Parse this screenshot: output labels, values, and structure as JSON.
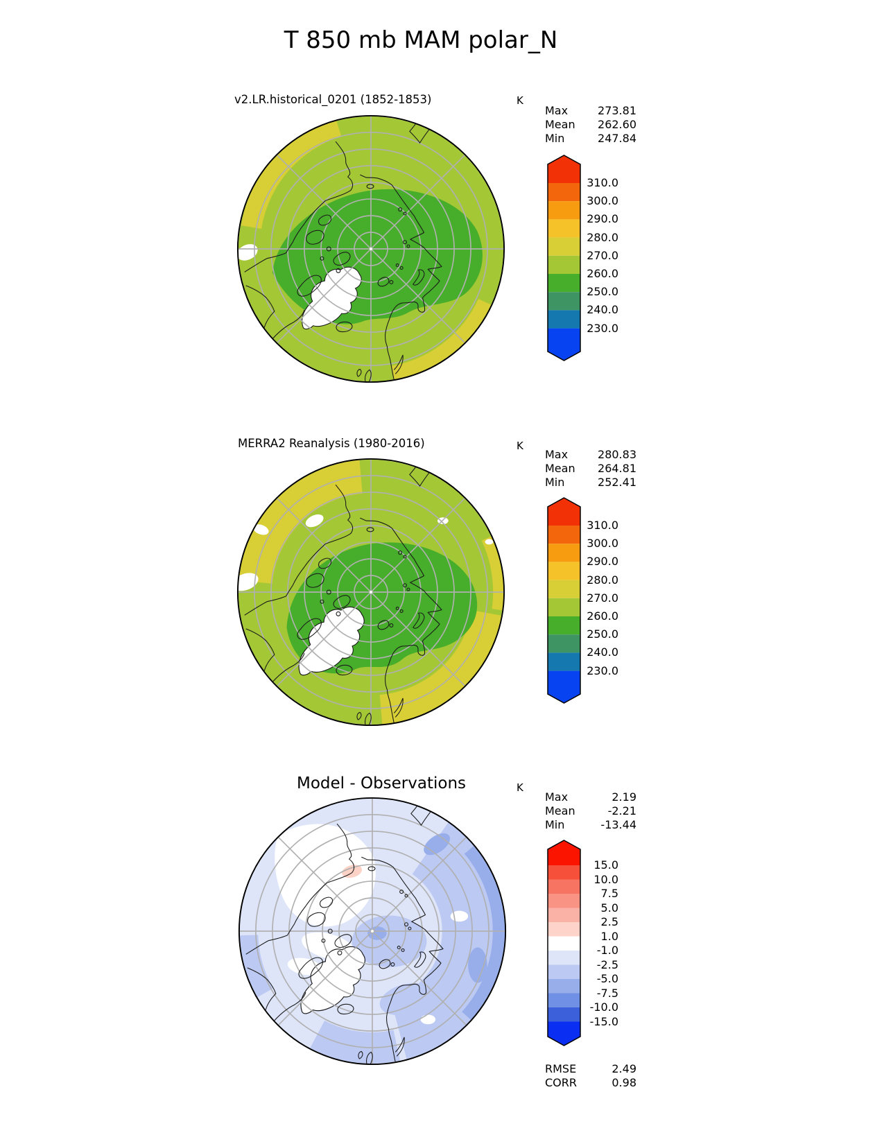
{
  "title": "T 850 mb MAM polar_N",
  "colors": {
    "background": "#ffffff",
    "graticule": "#b0b0b0",
    "coastline": "#1a1a1a",
    "map_outline": "#000000",
    "text": "#000000"
  },
  "panels": [
    {
      "name": "model",
      "title": "v2.LR.historical_0201 (1852-1853)",
      "units": "K",
      "stats": [
        {
          "label": "Max",
          "value": "273.81"
        },
        {
          "label": "Mean",
          "value": "262.60"
        },
        {
          "label": "Min",
          "value": "247.84"
        }
      ],
      "colorbar": {
        "labels": [
          "310.0",
          "300.0",
          "290.0",
          "280.0",
          "270.0",
          "260.0",
          "250.0",
          "240.0",
          "230.0"
        ],
        "colors": [
          "#f23206",
          "#f4660c",
          "#f79b10",
          "#f5c22a",
          "#d8ce35",
          "#a4c735",
          "#47ae2b",
          "#3e9463",
          "#1579b0",
          "#0743f0"
        ]
      },
      "map": {
        "base": "#a4c735",
        "cool": "#47ae2b",
        "warm": "#d8ce35",
        "masked": "#ffffff"
      }
    },
    {
      "name": "obs",
      "title": "MERRA2 Reanalysis (1980-2016)",
      "units": "K",
      "stats": [
        {
          "label": "Max",
          "value": "280.83"
        },
        {
          "label": "Mean",
          "value": "264.81"
        },
        {
          "label": "Min",
          "value": "252.41"
        }
      ],
      "colorbar": {
        "labels": [
          "310.0",
          "300.0",
          "290.0",
          "280.0",
          "270.0",
          "260.0",
          "250.0",
          "240.0",
          "230.0"
        ],
        "colors": [
          "#f23206",
          "#f4660c",
          "#f79b10",
          "#f5c22a",
          "#d8ce35",
          "#a4c735",
          "#47ae2b",
          "#3e9463",
          "#1579b0",
          "#0743f0"
        ]
      },
      "map": {
        "base": "#a4c735",
        "cool": "#47ae2b",
        "warm": "#d8ce35",
        "masked": "#ffffff"
      }
    },
    {
      "name": "diff",
      "title": "Model - Observations",
      "units": "K",
      "stats": [
        {
          "label": "Max",
          "value": "2.19"
        },
        {
          "label": "Mean",
          "value": "-2.21"
        },
        {
          "label": "Min",
          "value": "-13.44"
        }
      ],
      "colorbar": {
        "labels": [
          "15.0",
          "10.0",
          "7.5",
          "5.0",
          "2.5",
          "1.0",
          "-1.0",
          "-2.5",
          "-5.0",
          "-7.5",
          "-10.0",
          "-15.0"
        ],
        "colors": [
          "#fb1500",
          "#f6503a",
          "#f77463",
          "#f99384",
          "#fbb2a6",
          "#fdd3ca",
          "#ffffff",
          "#dee5f9",
          "#bcc9f2",
          "#97aeeb",
          "#7090e5",
          "#3c60da",
          "#0b2ff2"
        ]
      },
      "metrics": [
        {
          "label": "RMSE",
          "value": "2.49"
        },
        {
          "label": "CORR",
          "value": "0.98"
        }
      ],
      "map": {
        "base": "#dee5f9",
        "mid": "#bcc9f2",
        "deep": "#97aeeb",
        "warm_patch": "#fcd1c6",
        "masked": "#ffffff"
      }
    }
  ],
  "chart_data": [
    {
      "type": "heatmap",
      "projection": "north-polar-stereographic (50N-90N)",
      "title": "v2.LR.historical_0201 (1852-1853)",
      "units": "K",
      "levels": [
        230,
        240,
        250,
        260,
        270,
        280,
        290,
        300,
        310
      ],
      "stats": {
        "max": 273.81,
        "mean": 262.6,
        "min": 247.84
      },
      "legend_position": "right"
    },
    {
      "type": "heatmap",
      "projection": "north-polar-stereographic (50N-90N)",
      "title": "MERRA2 Reanalysis (1980-2016)",
      "units": "K",
      "levels": [
        230,
        240,
        250,
        260,
        270,
        280,
        290,
        300,
        310
      ],
      "stats": {
        "max": 280.83,
        "mean": 264.81,
        "min": 252.41
      },
      "legend_position": "right"
    },
    {
      "type": "heatmap",
      "projection": "north-polar-stereographic (50N-90N)",
      "title": "Model - Observations",
      "units": "K",
      "levels": [
        -15,
        -10,
        -7.5,
        -5,
        -2.5,
        -1,
        1,
        2.5,
        5,
        7.5,
        10,
        15
      ],
      "stats": {
        "max": 2.19,
        "mean": -2.21,
        "min": -13.44
      },
      "rmse": 2.49,
      "corr": 0.98,
      "legend_position": "right"
    }
  ]
}
